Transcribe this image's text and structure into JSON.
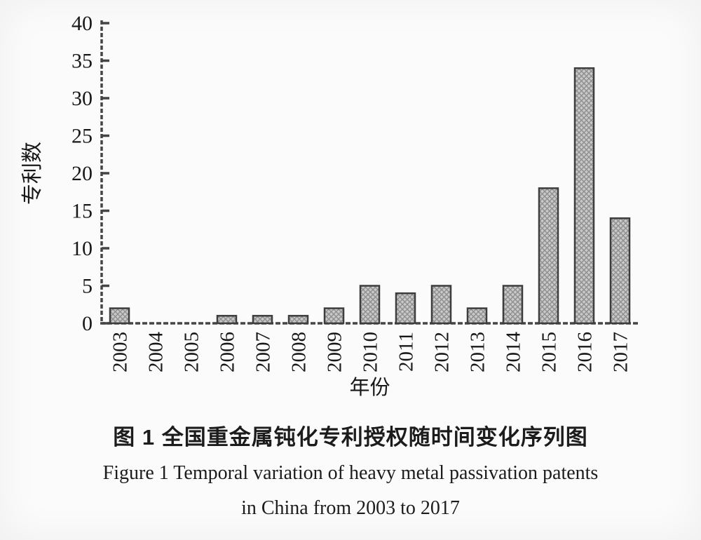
{
  "figure": {
    "caption_cn": "图 1 全国重金属钝化专利授权随时间变化序列图",
    "caption_en_line1": "Figure 1  Temporal variation of heavy metal passivation patents",
    "caption_en_line2": "in China from 2003 to 2017"
  },
  "chart_data": {
    "type": "bar",
    "title": "图 1 全国重金属钝化专利授权随时间变化序列图",
    "subtitle": "Figure 1 Temporal variation of heavy metal passivation patents in China from 2003 to 2017",
    "xlabel": "年份",
    "ylabel": "专利数",
    "categories": [
      "2003",
      "2004",
      "2005",
      "2006",
      "2007",
      "2008",
      "2009",
      "2010",
      "2011",
      "2012",
      "2013",
      "2014",
      "2015",
      "2016",
      "2017"
    ],
    "values": [
      2,
      0,
      0,
      1,
      1,
      1,
      2,
      5,
      4,
      5,
      2,
      5,
      18,
      34,
      14
    ],
    "ylim": [
      0,
      40
    ],
    "yticks": [
      0,
      5,
      10,
      15,
      20,
      25,
      30,
      35,
      40
    ],
    "grid": false,
    "legend": "none",
    "bar_style": "gray-crosshatch",
    "colors": {
      "bar_fill": "#c9c9c9",
      "bar_hatch": "#8f8f8f",
      "bar_border": "#3d3d3d",
      "axis": "#454545",
      "text": "#181818",
      "background": "#fbfbfb"
    }
  }
}
